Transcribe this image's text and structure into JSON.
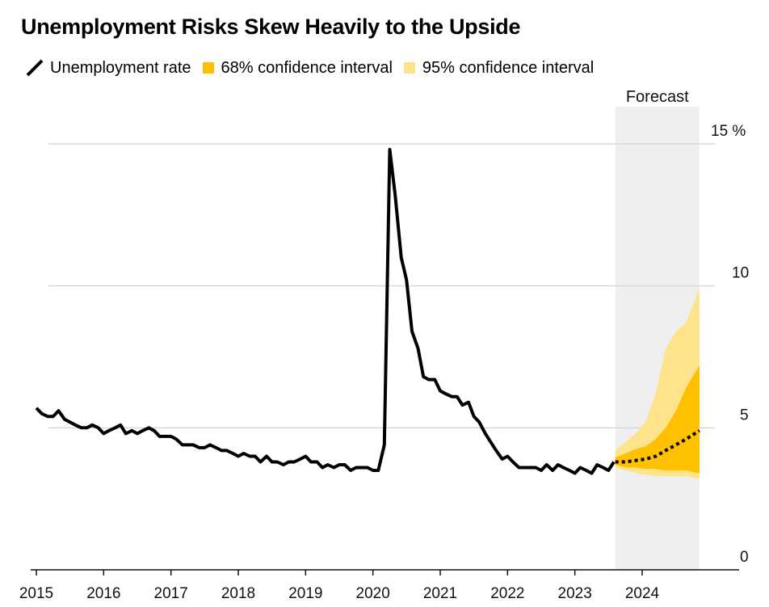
{
  "chart_data": {
    "type": "line",
    "title": "Unemployment Risks Skew Heavily to the Upside",
    "legend_position": "top-left",
    "legend": [
      {
        "label": "Unemployment rate",
        "kind": "line",
        "color": "#000000"
      },
      {
        "label": "68% confidence interval",
        "kind": "box",
        "color": "#ffc000"
      },
      {
        "label": "95% confidence interval",
        "kind": "box",
        "color": "#ffe38a"
      }
    ],
    "forecast_label": "Forecast",
    "forecast_range": [
      2023.6,
      2024.85
    ],
    "xlim": [
      2014.7,
      2025.5
    ],
    "ylim": [
      0,
      15
    ],
    "ylabel": "",
    "xlabel": "",
    "grid": true,
    "x_ticks": [
      {
        "value": 2015,
        "label": "2015"
      },
      {
        "value": 2016,
        "label": "2016"
      },
      {
        "value": 2017,
        "label": "2017"
      },
      {
        "value": 2018,
        "label": "2018"
      },
      {
        "value": 2019,
        "label": "2019"
      },
      {
        "value": 2020,
        "label": "2020"
      },
      {
        "value": 2021,
        "label": "2021"
      },
      {
        "value": 2022,
        "label": "2022"
      },
      {
        "value": 2023,
        "label": "2023"
      },
      {
        "value": 2024,
        "label": "2024"
      }
    ],
    "y_ticks": [
      {
        "value": 0,
        "label": "0"
      },
      {
        "value": 5,
        "label": "5"
      },
      {
        "value": 10,
        "label": "10"
      },
      {
        "value": 15,
        "label": "15 %"
      }
    ],
    "series": [
      {
        "name": "Unemployment rate",
        "color": "#000000",
        "style": "solid",
        "x": [
          2015.0,
          2015.08,
          2015.17,
          2015.25,
          2015.33,
          2015.42,
          2015.5,
          2015.58,
          2015.67,
          2015.75,
          2015.83,
          2015.92,
          2016.0,
          2016.08,
          2016.17,
          2016.25,
          2016.33,
          2016.42,
          2016.5,
          2016.58,
          2016.67,
          2016.75,
          2016.83,
          2016.92,
          2017.0,
          2017.08,
          2017.17,
          2017.25,
          2017.33,
          2017.42,
          2017.5,
          2017.58,
          2017.67,
          2017.75,
          2017.83,
          2017.92,
          2018.0,
          2018.08,
          2018.17,
          2018.25,
          2018.33,
          2018.42,
          2018.5,
          2018.58,
          2018.67,
          2018.75,
          2018.83,
          2018.92,
          2019.0,
          2019.08,
          2019.17,
          2019.25,
          2019.33,
          2019.42,
          2019.5,
          2019.58,
          2019.67,
          2019.75,
          2019.83,
          2019.92,
          2020.0,
          2020.08,
          2020.17,
          2020.25,
          2020.33,
          2020.42,
          2020.5,
          2020.58,
          2020.67,
          2020.75,
          2020.83,
          2020.92,
          2021.0,
          2021.08,
          2021.17,
          2021.25,
          2021.33,
          2021.42,
          2021.5,
          2021.58,
          2021.67,
          2021.75,
          2021.83,
          2021.92,
          2022.0,
          2022.08,
          2022.17,
          2022.25,
          2022.33,
          2022.42,
          2022.5,
          2022.58,
          2022.67,
          2022.75,
          2022.83,
          2022.92,
          2023.0,
          2023.08,
          2023.17,
          2023.25,
          2023.33,
          2023.42,
          2023.5,
          2023.58
        ],
        "values": [
          5.7,
          5.5,
          5.4,
          5.4,
          5.6,
          5.3,
          5.2,
          5.1,
          5.0,
          5.0,
          5.1,
          5.0,
          4.8,
          4.9,
          5.0,
          5.1,
          4.8,
          4.9,
          4.8,
          4.9,
          5.0,
          4.9,
          4.7,
          4.7,
          4.7,
          4.6,
          4.4,
          4.4,
          4.4,
          4.3,
          4.3,
          4.4,
          4.3,
          4.2,
          4.2,
          4.1,
          4.0,
          4.1,
          4.0,
          4.0,
          3.8,
          4.0,
          3.8,
          3.8,
          3.7,
          3.8,
          3.8,
          3.9,
          4.0,
          3.8,
          3.8,
          3.6,
          3.7,
          3.6,
          3.7,
          3.7,
          3.5,
          3.6,
          3.6,
          3.6,
          3.5,
          3.5,
          4.4,
          14.8,
          13.2,
          11.0,
          10.2,
          8.4,
          7.8,
          6.8,
          6.7,
          6.7,
          6.3,
          6.2,
          6.1,
          6.1,
          5.8,
          5.9,
          5.4,
          5.2,
          4.8,
          4.5,
          4.2,
          3.9,
          4.0,
          3.8,
          3.6,
          3.6,
          3.6,
          3.6,
          3.5,
          3.7,
          3.5,
          3.7,
          3.6,
          3.5,
          3.4,
          3.6,
          3.5,
          3.4,
          3.7,
          3.6,
          3.5,
          3.8
        ]
      },
      {
        "name": "Forecast",
        "color": "#000000",
        "style": "dotted",
        "x": [
          2023.6,
          2023.75,
          2023.9,
          2024.05,
          2024.2,
          2024.35,
          2024.5,
          2024.65,
          2024.85
        ],
        "values": [
          3.8,
          3.8,
          3.85,
          3.9,
          4.0,
          4.2,
          4.4,
          4.6,
          4.9
        ]
      }
    ],
    "bands": [
      {
        "name": "95% confidence interval",
        "color": "#ffe38a",
        "x": [
          2023.6,
          2023.75,
          2023.9,
          2024.05,
          2024.2,
          2024.35,
          2024.5,
          2024.65,
          2024.85
        ],
        "lower": [
          3.6,
          3.5,
          3.4,
          3.35,
          3.3,
          3.3,
          3.3,
          3.3,
          3.2
        ],
        "upper": [
          4.2,
          4.5,
          4.8,
          5.2,
          6.2,
          7.8,
          8.4,
          8.7,
          9.9
        ]
      },
      {
        "name": "68% confidence interval",
        "color": "#ffc000",
        "x": [
          2023.6,
          2023.75,
          2023.9,
          2024.05,
          2024.2,
          2024.35,
          2024.5,
          2024.65,
          2024.85
        ],
        "lower": [
          3.7,
          3.6,
          3.6,
          3.55,
          3.55,
          3.5,
          3.5,
          3.5,
          3.4
        ],
        "upper": [
          3.95,
          4.1,
          4.25,
          4.35,
          4.6,
          5.0,
          5.6,
          6.4,
          7.2
        ]
      }
    ]
  }
}
